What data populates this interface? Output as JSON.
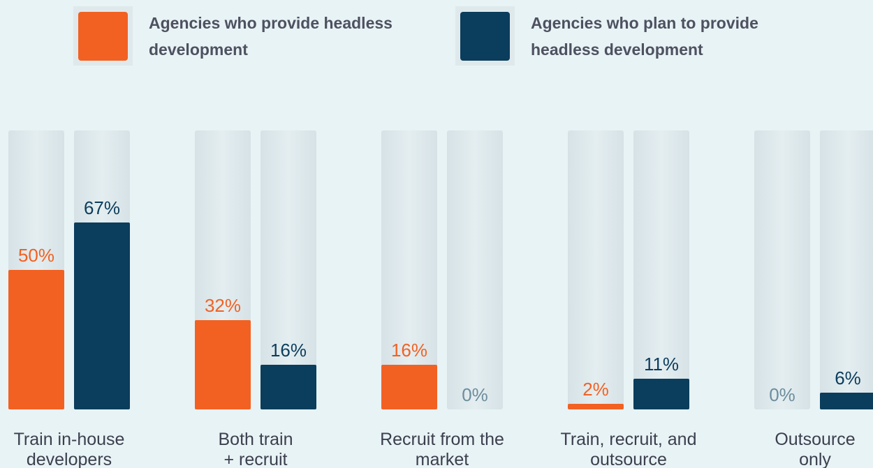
{
  "chart_data": {
    "type": "bar",
    "categories": [
      [
        "Train in-house",
        "developers"
      ],
      [
        "Both train",
        "+ recruit"
      ],
      [
        "Recruit from the",
        "market"
      ],
      [
        "Train, recruit, and",
        "outsource"
      ],
      [
        "Outsource",
        "only"
      ]
    ],
    "series": [
      {
        "name": "Agencies who provide headless development",
        "color": "#f26122",
        "values": [
          50,
          32,
          16,
          2,
          0
        ],
        "value_labels": [
          "50%",
          "32%",
          "16%",
          "2%",
          "0%"
        ]
      },
      {
        "name": "Agencies who plan to provide headless development",
        "color": "#0b3d5c",
        "values": [
          67,
          16,
          0,
          11,
          6
        ],
        "value_labels": [
          "67%",
          "16%",
          "0%",
          "11%",
          "6%"
        ]
      }
    ],
    "ylim": [
      0,
      100
    ]
  }
}
